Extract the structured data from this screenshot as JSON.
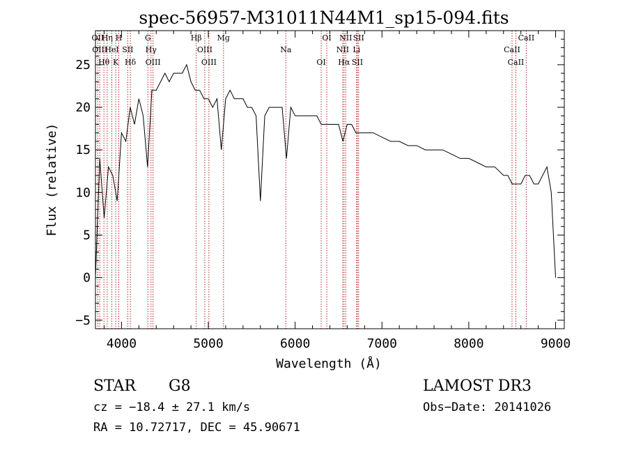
{
  "chart_data": {
    "type": "line",
    "title": "spec-56957-M31011N44M1_sp15-094.fits",
    "xlabel": "Wavelength (Å)",
    "ylabel": "Flux (relative)",
    "xlim": [
      3700,
      9100
    ],
    "ylim": [
      -6,
      29
    ],
    "xticks": [
      4000,
      5000,
      6000,
      7000,
      8000,
      9000
    ],
    "yticks": [
      -5,
      0,
      5,
      10,
      15,
      20,
      25
    ],
    "series": [
      {
        "x": [
          3700,
          3750,
          3800,
          3850,
          3900,
          3950,
          4000,
          4050,
          4100,
          4150,
          4200,
          4250,
          4300,
          4350,
          4400,
          4450,
          4500,
          4550,
          4600,
          4650,
          4700,
          4750,
          4800,
          4850,
          4900,
          4950,
          5000,
          5050,
          5100,
          5150,
          5200,
          5250,
          5300,
          5350,
          5400,
          5450,
          5500,
          5550,
          5600,
          5650,
          5700,
          5750,
          5800,
          5850,
          5900,
          5950,
          6000,
          6050,
          6100,
          6150,
          6200,
          6250,
          6300,
          6350,
          6400,
          6450,
          6500,
          6550,
          6600,
          6650,
          6700,
          6750,
          6800,
          6900,
          7000,
          7100,
          7200,
          7300,
          7400,
          7500,
          7600,
          7700,
          7800,
          7900,
          8000,
          8100,
          8200,
          8300,
          8400,
          8450,
          8500,
          8550,
          8600,
          8650,
          8700,
          8750,
          8800,
          8850,
          8900,
          8950,
          9000
        ],
        "y": [
          0,
          14,
          7,
          13,
          12,
          9,
          17,
          16,
          20,
          18,
          21,
          19,
          13,
          22,
          22,
          23,
          24,
          23,
          24,
          24,
          24,
          25,
          23,
          22,
          22,
          21,
          21,
          20,
          21,
          15,
          21,
          22,
          21,
          21,
          21,
          20,
          20,
          19,
          9,
          19,
          20,
          20,
          20,
          20,
          14,
          20,
          19,
          19,
          19,
          19,
          19,
          19,
          18,
          18,
          18,
          18,
          18,
          16,
          18,
          18,
          17,
          17,
          17,
          17,
          16.5,
          16,
          16,
          15.5,
          15.5,
          15,
          15,
          15,
          14.5,
          14,
          14,
          13.5,
          13,
          13,
          12,
          12,
          11,
          11,
          11,
          12,
          12,
          11,
          11,
          12,
          13,
          10,
          0
        ]
      }
    ],
    "lines": [
      {
        "x": 3727,
        "label": "OII"
      },
      {
        "x": 3750,
        "label": "OIII"
      },
      {
        "x": 3798,
        "label": "Hθ"
      },
      {
        "x": 3835,
        "label": "Hη"
      },
      {
        "x": 3889,
        "label": "HeI"
      },
      {
        "x": 3934,
        "label": "K"
      },
      {
        "x": 3969,
        "label": "H"
      },
      {
        "x": 4072,
        "label": "SII"
      },
      {
        "x": 4102,
        "label": "Hδ"
      },
      {
        "x": 4304,
        "label": "G"
      },
      {
        "x": 4340,
        "label": "Hγ"
      },
      {
        "x": 4363,
        "label": "OIII"
      },
      {
        "x": 4861,
        "label": "Hβ"
      },
      {
        "x": 4959,
        "label": "OIII"
      },
      {
        "x": 5007,
        "label": "OIII"
      },
      {
        "x": 5175,
        "label": "Mg"
      },
      {
        "x": 5893,
        "label": "Na"
      },
      {
        "x": 6300,
        "label": "OI"
      },
      {
        "x": 6364,
        "label": "OI"
      },
      {
        "x": 6548,
        "label": "NII"
      },
      {
        "x": 6563,
        "label": "Hα"
      },
      {
        "x": 6583,
        "label": "NII"
      },
      {
        "x": 6707,
        "label": "Li"
      },
      {
        "x": 6717,
        "label": "SII"
      },
      {
        "x": 6731,
        "label": "SII"
      },
      {
        "x": 8498,
        "label": "CaII"
      },
      {
        "x": 8542,
        "label": "CaII"
      },
      {
        "x": 8662,
        "label": "CaII"
      }
    ]
  },
  "info": {
    "class": "STAR",
    "subclass": "G8",
    "survey": "LAMOST DR3",
    "cz": "cz = −18.4 ± 27.1 km/s",
    "obsdate": "Obs−Date: 20141026",
    "radec": "RA =  10.72717, DEC =  45.90671"
  },
  "colors": {
    "line": "#000000",
    "marker": "#b22222"
  }
}
